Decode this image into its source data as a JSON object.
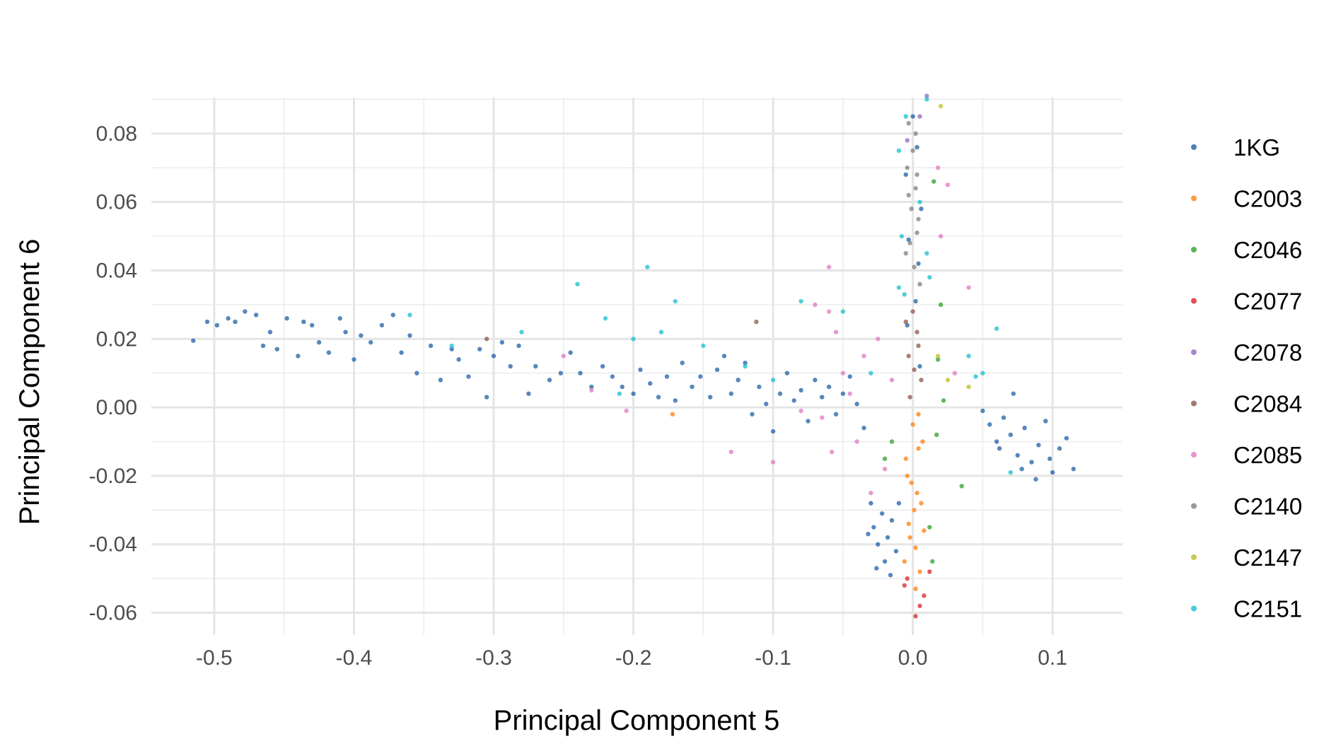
{
  "chart_data": {
    "type": "scatter",
    "title": "",
    "xlabel": "Principal Component 5",
    "ylabel": "Principal Component 6",
    "xlim": [
      -0.545,
      0.15
    ],
    "ylim": [
      -0.0665,
      0.0905
    ],
    "x_ticks": [
      {
        "value": -0.5,
        "label": "-0.5"
      },
      {
        "value": -0.4,
        "label": "-0.4"
      },
      {
        "value": -0.3,
        "label": "-0.3"
      },
      {
        "value": -0.2,
        "label": "-0.2"
      },
      {
        "value": -0.1,
        "label": "-0.1"
      },
      {
        "value": 0.0,
        "label": "0.0"
      },
      {
        "value": 0.1,
        "label": "0.1"
      }
    ],
    "y_ticks": [
      {
        "value": 0.08,
        "label": "0.08"
      },
      {
        "value": 0.06,
        "label": "0.06"
      },
      {
        "value": 0.04,
        "label": "0.04"
      },
      {
        "value": 0.02,
        "label": "0.02"
      },
      {
        "value": 0.0,
        "label": "0.00"
      },
      {
        "value": -0.02,
        "label": "-0.02"
      },
      {
        "value": -0.04,
        "label": "-0.04"
      },
      {
        "value": -0.06,
        "label": "-0.06"
      }
    ],
    "grid": true,
    "legend_position": "right",
    "series": [
      {
        "name": "1KG",
        "color": "#1f5fa6",
        "points": [
          [
            -0.515,
            0.0195
          ],
          [
            -0.505,
            0.025
          ],
          [
            -0.498,
            0.024
          ],
          [
            -0.49,
            0.026
          ],
          [
            -0.485,
            0.025
          ],
          [
            -0.478,
            0.028
          ],
          [
            -0.47,
            0.027
          ],
          [
            -0.465,
            0.018
          ],
          [
            -0.46,
            0.022
          ],
          [
            -0.455,
            0.017
          ],
          [
            -0.448,
            0.026
          ],
          [
            -0.44,
            0.015
          ],
          [
            -0.436,
            0.025
          ],
          [
            -0.43,
            0.024
          ],
          [
            -0.425,
            0.019
          ],
          [
            -0.418,
            0.016
          ],
          [
            -0.41,
            0.026
          ],
          [
            -0.406,
            0.022
          ],
          [
            -0.4,
            0.014
          ],
          [
            -0.395,
            0.021
          ],
          [
            -0.388,
            0.019
          ],
          [
            -0.38,
            0.024
          ],
          [
            -0.372,
            0.027
          ],
          [
            -0.366,
            0.016
          ],
          [
            -0.36,
            0.021
          ],
          [
            -0.355,
            0.01
          ],
          [
            -0.345,
            0.018
          ],
          [
            -0.338,
            0.008
          ],
          [
            -0.33,
            0.017
          ],
          [
            -0.325,
            0.014
          ],
          [
            -0.318,
            0.009
          ],
          [
            -0.31,
            0.017
          ],
          [
            -0.305,
            0.003
          ],
          [
            -0.3,
            0.015
          ],
          [
            -0.294,
            0.019
          ],
          [
            -0.288,
            0.012
          ],
          [
            -0.282,
            0.018
          ],
          [
            -0.275,
            0.004
          ],
          [
            -0.27,
            0.012
          ],
          [
            -0.26,
            0.008
          ],
          [
            -0.252,
            0.01
          ],
          [
            -0.245,
            0.016
          ],
          [
            -0.238,
            0.01
          ],
          [
            -0.23,
            0.006
          ],
          [
            -0.222,
            0.012
          ],
          [
            -0.215,
            0.009
          ],
          [
            -0.208,
            0.006
          ],
          [
            -0.2,
            0.004
          ],
          [
            -0.195,
            0.011
          ],
          [
            -0.188,
            0.007
          ],
          [
            -0.182,
            0.003
          ],
          [
            -0.176,
            0.009
          ],
          [
            -0.17,
            0.002
          ],
          [
            -0.165,
            0.013
          ],
          [
            -0.158,
            0.006
          ],
          [
            -0.152,
            0.009
          ],
          [
            -0.145,
            0.003
          ],
          [
            -0.14,
            0.011
          ],
          [
            -0.135,
            0.015
          ],
          [
            -0.13,
            0.004
          ],
          [
            -0.125,
            0.008
          ],
          [
            -0.12,
            0.013
          ],
          [
            -0.115,
            -0.002
          ],
          [
            -0.11,
            0.006
          ],
          [
            -0.105,
            0.001
          ],
          [
            -0.1,
            -0.007
          ],
          [
            -0.095,
            0.004
          ],
          [
            -0.09,
            0.01
          ],
          [
            -0.085,
            0.002
          ],
          [
            -0.08,
            0.005
          ],
          [
            -0.075,
            -0.004
          ],
          [
            -0.07,
            0.008
          ],
          [
            -0.065,
            0.003
          ],
          [
            -0.06,
            0.006
          ],
          [
            -0.055,
            -0.002
          ],
          [
            -0.05,
            0.004
          ],
          [
            -0.045,
            0.009
          ],
          [
            -0.04,
            0.001
          ],
          [
            -0.035,
            -0.006
          ],
          [
            -0.03,
            -0.028
          ],
          [
            -0.028,
            -0.035
          ],
          [
            -0.025,
            -0.04
          ],
          [
            -0.022,
            -0.031
          ],
          [
            -0.02,
            -0.045
          ],
          [
            -0.018,
            -0.038
          ],
          [
            -0.015,
            -0.033
          ],
          [
            -0.012,
            -0.042
          ],
          [
            -0.032,
            -0.037
          ],
          [
            -0.026,
            -0.047
          ],
          [
            -0.016,
            -0.049
          ],
          [
            -0.01,
            -0.028
          ],
          [
            0.0,
            0.085
          ],
          [
            0.003,
            0.076
          ],
          [
            -0.005,
            0.068
          ],
          [
            0.006,
            0.058
          ],
          [
            -0.003,
            0.049
          ],
          [
            0.004,
            0.042
          ],
          [
            0.002,
            0.031
          ],
          [
            -0.004,
            0.024
          ],
          [
            0.005,
            0.012
          ],
          [
            0.05,
            -0.001
          ],
          [
            0.055,
            -0.005
          ],
          [
            0.06,
            -0.01
          ],
          [
            0.065,
            -0.003
          ],
          [
            0.07,
            -0.008
          ],
          [
            0.075,
            -0.014
          ],
          [
            0.08,
            -0.006
          ],
          [
            0.085,
            -0.016
          ],
          [
            0.09,
            -0.011
          ],
          [
            0.095,
            -0.004
          ],
          [
            0.1,
            -0.019
          ],
          [
            0.105,
            -0.012
          ],
          [
            0.11,
            -0.009
          ],
          [
            0.115,
            -0.018
          ],
          [
            0.072,
            0.004
          ],
          [
            0.088,
            -0.021
          ],
          [
            0.098,
            -0.015
          ],
          [
            0.062,
            -0.012
          ],
          [
            0.078,
            -0.018
          ]
        ]
      },
      {
        "name": "C2003",
        "color": "#ff7f0e",
        "points": [
          [
            0.0,
            -0.005
          ],
          [
            0.004,
            -0.012
          ],
          [
            -0.004,
            -0.02
          ],
          [
            0.006,
            -0.028
          ],
          [
            -0.003,
            -0.034
          ],
          [
            0.002,
            -0.041
          ],
          [
            0.005,
            -0.048
          ],
          [
            -0.005,
            -0.015
          ],
          [
            0.003,
            -0.025
          ],
          [
            -0.002,
            -0.038
          ],
          [
            0.007,
            -0.01
          ],
          [
            0.001,
            -0.03
          ],
          [
            -0.006,
            -0.045
          ],
          [
            0.004,
            -0.002
          ],
          [
            -0.001,
            -0.022
          ],
          [
            0.008,
            -0.036
          ],
          [
            -0.172,
            -0.002
          ],
          [
            0.002,
            -0.053
          ]
        ]
      },
      {
        "name": "C2046",
        "color": "#2ca02c",
        "points": [
          [
            0.015,
            0.066
          ],
          [
            0.017,
            -0.008
          ],
          [
            0.022,
            0.002
          ],
          [
            0.035,
            -0.023
          ],
          [
            -0.02,
            -0.015
          ],
          [
            0.012,
            -0.035
          ],
          [
            0.018,
            0.014
          ],
          [
            -0.015,
            -0.01
          ],
          [
            0.02,
            0.03
          ],
          [
            0.014,
            -0.045
          ]
        ]
      },
      {
        "name": "C2077",
        "color": "#d62728",
        "points": [
          [
            0.005,
            -0.058
          ],
          [
            0.002,
            -0.061
          ],
          [
            -0.006,
            -0.052
          ],
          [
            0.008,
            -0.055
          ],
          [
            0.012,
            -0.048
          ],
          [
            -0.004,
            -0.05
          ]
        ]
      },
      {
        "name": "C2078",
        "color": "#9467bd",
        "points": [
          [
            0.01,
            0.091
          ],
          [
            0.005,
            0.085
          ],
          [
            -0.004,
            0.078
          ]
        ]
      },
      {
        "name": "C2084",
        "color": "#8c564b",
        "points": [
          [
            0.0,
            0.028
          ],
          [
            0.003,
            0.022
          ],
          [
            -0.003,
            0.015
          ],
          [
            0.006,
            0.008
          ],
          [
            -0.002,
            0.003
          ],
          [
            0.004,
            0.018
          ],
          [
            0.001,
            0.011
          ],
          [
            -0.005,
            0.025
          ],
          [
            -0.112,
            0.025
          ],
          [
            -0.305,
            0.02
          ]
        ]
      },
      {
        "name": "C2085",
        "color": "#e377c2",
        "points": [
          [
            -0.07,
            0.03
          ],
          [
            -0.06,
            0.028
          ],
          [
            -0.055,
            0.022
          ],
          [
            -0.05,
            0.01
          ],
          [
            -0.045,
            0.004
          ],
          [
            -0.04,
            -0.01
          ],
          [
            -0.035,
            0.015
          ],
          [
            -0.03,
            -0.025
          ],
          [
            -0.02,
            -0.018
          ],
          [
            -0.015,
            0.008
          ],
          [
            -0.1,
            -0.016
          ],
          [
            -0.13,
            -0.013
          ],
          [
            -0.205,
            -0.001
          ],
          [
            -0.23,
            0.005
          ],
          [
            -0.25,
            0.015
          ],
          [
            -0.06,
            0.041
          ],
          [
            -0.065,
            -0.003
          ],
          [
            0.02,
            0.05
          ],
          [
            0.025,
            0.065
          ],
          [
            0.04,
            0.035
          ],
          [
            0.03,
            0.01
          ],
          [
            -0.025,
            0.02
          ],
          [
            -0.058,
            -0.013
          ],
          [
            -0.08,
            -0.001
          ],
          [
            0.018,
            0.07
          ]
        ]
      },
      {
        "name": "C2140",
        "color": "#7f7f7f",
        "points": [
          [
            0.0,
            0.075
          ],
          [
            0.003,
            0.068
          ],
          [
            -0.003,
            0.062
          ],
          [
            0.004,
            0.055
          ],
          [
            -0.002,
            0.048
          ],
          [
            0.001,
            0.041
          ],
          [
            0.005,
            0.036
          ],
          [
            -0.004,
            0.07
          ],
          [
            0.002,
            0.064
          ],
          [
            -0.001,
            0.058
          ],
          [
            0.003,
            0.051
          ],
          [
            -0.005,
            0.045
          ],
          [
            0.002,
            0.08
          ],
          [
            -0.003,
            0.083
          ]
        ]
      },
      {
        "name": "C2147",
        "color": "#bcbd22",
        "points": [
          [
            0.02,
            0.088
          ],
          [
            0.025,
            0.008
          ],
          [
            0.04,
            0.006
          ],
          [
            0.018,
            0.015
          ]
        ]
      },
      {
        "name": "C2151",
        "color": "#17becf",
        "points": [
          [
            -0.19,
            0.041
          ],
          [
            -0.24,
            0.036
          ],
          [
            -0.36,
            0.027
          ],
          [
            -0.17,
            0.031
          ],
          [
            -0.2,
            0.02
          ],
          [
            -0.22,
            0.026
          ],
          [
            -0.15,
            0.018
          ],
          [
            -0.18,
            0.022
          ],
          [
            -0.08,
            0.031
          ],
          [
            -0.05,
            0.028
          ],
          [
            -0.01,
            0.035
          ],
          [
            0.01,
            0.09
          ],
          [
            -0.005,
            0.085
          ],
          [
            -0.01,
            0.075
          ],
          [
            0.005,
            0.06
          ],
          [
            -0.008,
            0.05
          ],
          [
            0.01,
            0.045
          ],
          [
            0.04,
            0.015
          ],
          [
            0.05,
            0.01
          ],
          [
            0.06,
            0.023
          ],
          [
            0.07,
            -0.019
          ],
          [
            -0.03,
            0.01
          ],
          [
            -0.21,
            0.004
          ],
          [
            -0.33,
            0.018
          ],
          [
            -0.28,
            0.022
          ],
          [
            -0.12,
            0.012
          ],
          [
            -0.1,
            0.008
          ],
          [
            0.012,
            0.038
          ],
          [
            -0.006,
            0.033
          ],
          [
            0.045,
            0.009
          ]
        ]
      }
    ]
  }
}
